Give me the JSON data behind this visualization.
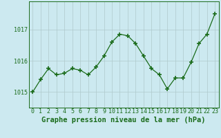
{
  "x": [
    0,
    1,
    2,
    3,
    4,
    5,
    6,
    7,
    8,
    9,
    10,
    11,
    12,
    13,
    14,
    15,
    16,
    17,
    18,
    19,
    20,
    21,
    22,
    23
  ],
  "y": [
    1015.0,
    1015.4,
    1015.75,
    1015.55,
    1015.6,
    1015.75,
    1015.7,
    1015.55,
    1015.8,
    1016.15,
    1016.6,
    1016.85,
    1016.8,
    1016.55,
    1016.15,
    1015.75,
    1015.55,
    1015.1,
    1015.45,
    1015.45,
    1015.95,
    1016.55,
    1016.85,
    1017.5
  ],
  "line_color": "#1a6b1a",
  "marker": "+",
  "marker_size": 4,
  "marker_lw": 1.2,
  "bg_color": "#cce9f0",
  "grid_color": "#aec8cc",
  "xlabel": "Graphe pression niveau de la mer (hPa)",
  "xlabel_fontsize": 7.5,
  "xlabel_color": "#1a6b1a",
  "xlabel_fontweight": "bold",
  "yticks": [
    1015,
    1016,
    1017
  ],
  "ylim": [
    1014.5,
    1017.9
  ],
  "xlim": [
    -0.5,
    23.5
  ],
  "tick_fontsize": 6.0,
  "linewidth": 0.9
}
